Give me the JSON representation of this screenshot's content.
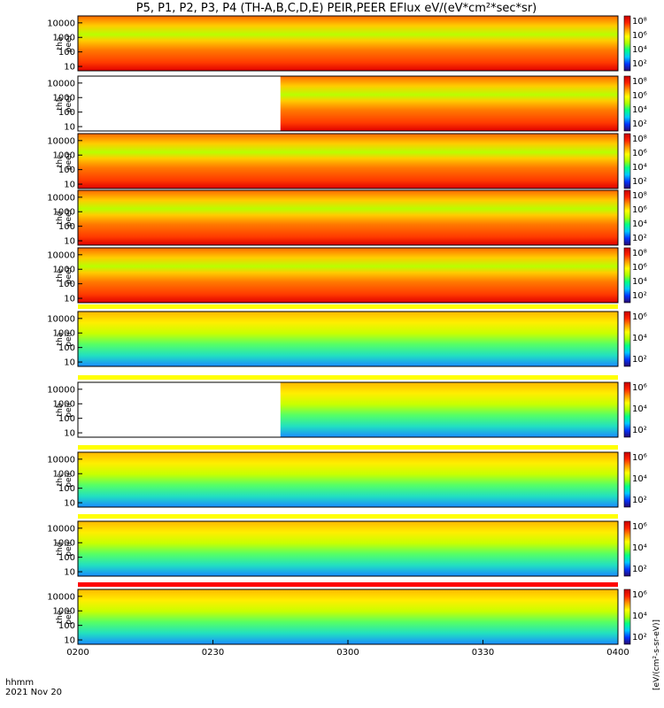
{
  "title": "P5, P1, P2, P3, P4 (TH-A,B,C,D,E) PEIR,PEER EFlux eV/(eV*cm²*sec*sr)",
  "x_label_line1": "hhmm",
  "x_label_line2": "2021 Nov 20",
  "colorbar_unit_label": "[eV/(cm²-s-sr-eV)]",
  "chart_data": {
    "type": "heatmap",
    "x_axis": {
      "ticks": [
        "0200",
        "0230",
        "0300",
        "0330",
        "0400"
      ],
      "range": [
        "02:00",
        "04:00"
      ]
    },
    "y_axis": {
      "scale": "log",
      "ticks": [
        "10",
        "100",
        "1000",
        "10000"
      ],
      "range": [
        5,
        30000
      ],
      "unit": "eV"
    },
    "colorbar": {
      "scale": "log",
      "range": [
        10.0,
        100000000.0
      ],
      "colormap": "rainbow"
    },
    "panels": [
      {
        "label_top": "tha",
        "label_bottom": "peer",
        "colorbar_ticks": [
          "10⁸",
          "10⁶",
          "10⁴",
          "10²"
        ],
        "data_start_fraction": 0.0,
        "flag_bar": false
      },
      {
        "label_top": "thb",
        "label_bottom": "peer",
        "colorbar_ticks": [
          "10⁸",
          "10⁶",
          "10⁴",
          "10²"
        ],
        "data_start_fraction": 0.375,
        "flag_bar": false
      },
      {
        "label_top": "thc",
        "label_bottom": "peer",
        "colorbar_ticks": [
          "10⁸",
          "10⁶",
          "10⁴",
          "10²"
        ],
        "data_start_fraction": 0.0,
        "flag_bar": false
      },
      {
        "label_top": "thd",
        "label_bottom": "peer",
        "colorbar_ticks": [
          "10⁸",
          "10⁶",
          "10⁴",
          "10²"
        ],
        "data_start_fraction": 0.0,
        "flag_bar": false
      },
      {
        "label_top": "the",
        "label_bottom": "peer",
        "colorbar_ticks": [
          "10⁸",
          "10⁶",
          "10⁴",
          "10²"
        ],
        "data_start_fraction": 0.0,
        "flag_bar": false
      },
      {
        "label_top": "tha",
        "label_bottom": "peir",
        "colorbar_ticks": [
          "10⁶",
          "10⁴",
          "10²"
        ],
        "data_start_fraction": 0.0,
        "flag_bar": true
      },
      {
        "label_top": "thb",
        "label_bottom": "peir",
        "colorbar_ticks": [
          "10⁶",
          "10⁴",
          "10²"
        ],
        "data_start_fraction": 0.375,
        "flag_bar": true
      },
      {
        "label_top": "thc",
        "label_bottom": "peir",
        "colorbar_ticks": [
          "10⁶",
          "10⁴",
          "10²"
        ],
        "data_start_fraction": 0.0,
        "flag_bar": true
      },
      {
        "label_top": "thd",
        "label_bottom": "peir",
        "colorbar_ticks": [
          "10⁶",
          "10⁴",
          "10²"
        ],
        "data_start_fraction": 0.0,
        "flag_bar": true
      },
      {
        "label_top": "the",
        "label_bottom": "peir",
        "colorbar_ticks": [
          "10⁶",
          "10⁴",
          "10²"
        ],
        "data_start_fraction": 0.0,
        "flag_bar": true
      }
    ]
  },
  "colors": {
    "flag_yellow": "#ffff00",
    "flag_red": "#ff0000",
    "colormap_stops": [
      "#2a0a6e",
      "#0033ff",
      "#00c8ff",
      "#00ff88",
      "#a8ff00",
      "#ffff00",
      "#ff9900",
      "#ff2200",
      "#c80000"
    ]
  }
}
